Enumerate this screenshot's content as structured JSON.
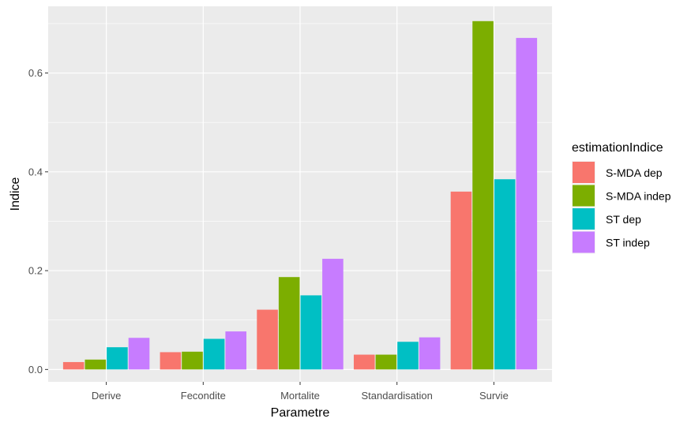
{
  "chart_data": {
    "type": "bar",
    "xlabel": "Parametre",
    "ylabel": "Indice",
    "categories": [
      "Derive",
      "Fecondite",
      "Mortalite",
      "Standardisation",
      "Survie"
    ],
    "series": [
      {
        "name": "S-MDA dep",
        "color": "#F8766D",
        "values": [
          0.015,
          0.035,
          0.121,
          0.03,
          0.36
        ]
      },
      {
        "name": "S-MDA indep",
        "color": "#7CAE00",
        "values": [
          0.02,
          0.036,
          0.187,
          0.03,
          0.705
        ]
      },
      {
        "name": "ST dep",
        "color": "#00BFC4",
        "values": [
          0.045,
          0.062,
          0.15,
          0.056,
          0.385
        ]
      },
      {
        "name": "ST indep",
        "color": "#C77CFF",
        "values": [
          0.064,
          0.077,
          0.224,
          0.065,
          0.671
        ]
      }
    ],
    "ylim": [
      -0.025,
      0.735
    ],
    "yticks": [
      0.0,
      0.2,
      0.4,
      0.6
    ],
    "ytick_labels": [
      "0.0",
      "0.2",
      "0.4",
      "0.6"
    ],
    "legend_title": "estimationIndice",
    "legend_position": "right",
    "grid": true,
    "panel_background": "#EBEBEB",
    "gridline_color": "#FFFFFF"
  }
}
